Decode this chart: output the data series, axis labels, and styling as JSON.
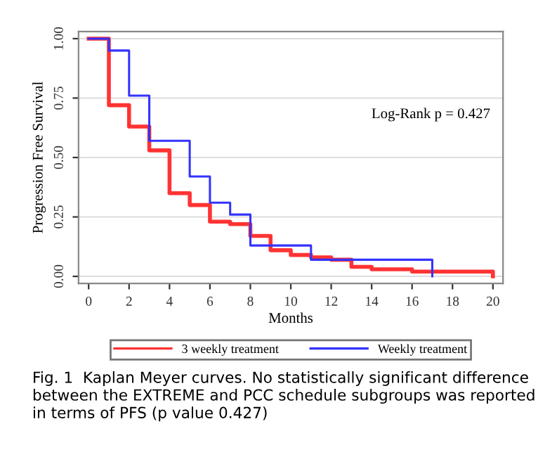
{
  "chart_data": {
    "type": "step",
    "xlabel": "Months",
    "ylabel": "Progression Free Survival",
    "xlim": [
      -0.5,
      20.5
    ],
    "ylim": [
      -0.03,
      1.03
    ],
    "xticks": [
      0,
      2,
      4,
      6,
      8,
      10,
      12,
      14,
      16,
      18,
      20
    ],
    "yticks": [
      {
        "value": 0,
        "label": "0.00"
      },
      {
        "value": 0.25,
        "label": "0.25"
      },
      {
        "value": 0.5,
        "label": "0.50"
      },
      {
        "value": 0.75,
        "label": "0.75"
      },
      {
        "value": 1,
        "label": "1.00"
      }
    ],
    "grid": "y",
    "legend": "bottom",
    "series": [
      {
        "name": "3 weekly treatment",
        "color": "#ff3333",
        "x": [
          0,
          1,
          2,
          3,
          4,
          5,
          6,
          7,
          8,
          9,
          10,
          11,
          12,
          13,
          14,
          16,
          20,
          20
        ],
        "values": [
          1,
          0.72,
          0.63,
          0.53,
          0.35,
          0.3,
          0.23,
          0.22,
          0.17,
          0.11,
          0.09,
          0.08,
          0.07,
          0.04,
          0.03,
          0.02,
          0.02,
          0
        ]
      },
      {
        "name": "Weekly treatment",
        "color": "#3333ff",
        "x": [
          0,
          1,
          2,
          3,
          5,
          6,
          7,
          8,
          11,
          17,
          17
        ],
        "values": [
          1,
          0.95,
          0.76,
          0.57,
          0.42,
          0.31,
          0.26,
          0.13,
          0.07,
          0.07,
          0
        ]
      }
    ],
    "annotations": [
      "Log-Rank p = 0.427",
      "Fig. 1  Kaplan Meyer curves. No statistically significant difference between the EXTREME and PCC schedule subgroups was reported in terms of PFS (p value 0.427)"
    ]
  }
}
